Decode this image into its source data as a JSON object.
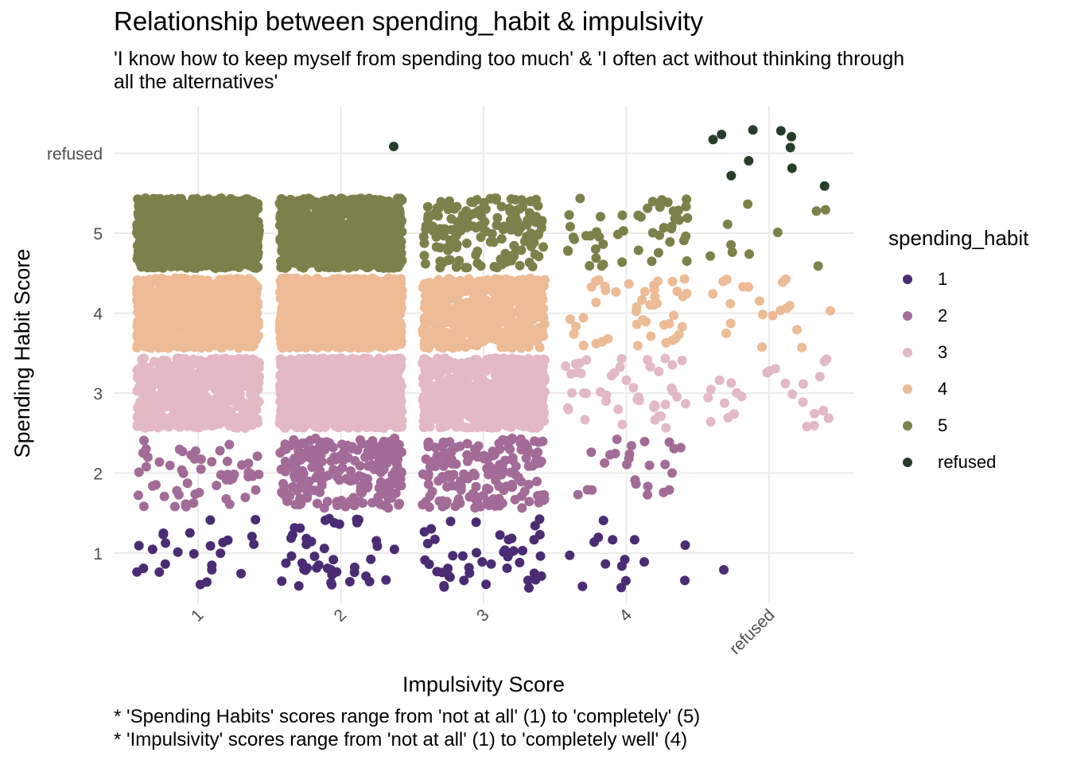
{
  "title": "Relationship between spending_habit & impulsivity",
  "subtitle": "'I know how to keep myself from spending too much' & 'I often act without thinking through all the alternatives'",
  "caption": [
    "* 'Spending Habits' scores range from 'not at all' (1) to 'completely' (5)",
    "* 'Impulsivity' scores range from 'not at all' (1) to 'completely well' (4)"
  ],
  "chart_data": {
    "type": "scatter",
    "subtype": "jitter",
    "xlabel": "Impulsivity Score",
    "ylabel": "Spending Habit Score",
    "x_categories": [
      "1",
      "2",
      "3",
      "4",
      "refused"
    ],
    "y_categories": [
      "1",
      "2",
      "3",
      "4",
      "5",
      "refused"
    ],
    "grid": true,
    "legend_position": "right",
    "legend_title": "spending_habit",
    "series": [
      {
        "name": "1",
        "color": "#4b2c74"
      },
      {
        "name": "2",
        "color": "#a36b97"
      },
      {
        "name": "3",
        "color": "#e3b9c3"
      },
      {
        "name": "4",
        "color": "#edbb96"
      },
      {
        "name": "5",
        "color": "#7c804a"
      },
      {
        "name": "refused",
        "color": "#263d2c"
      }
    ],
    "approx_point_counts": [
      [
        25,
        45,
        45,
        15,
        1
      ],
      [
        55,
        220,
        170,
        25,
        0
      ],
      [
        600,
        1400,
        650,
        45,
        25
      ],
      [
        900,
        1300,
        550,
        45,
        20
      ],
      [
        1100,
        900,
        160,
        50,
        10
      ],
      [
        0,
        1,
        0,
        0,
        10
      ]
    ]
  }
}
